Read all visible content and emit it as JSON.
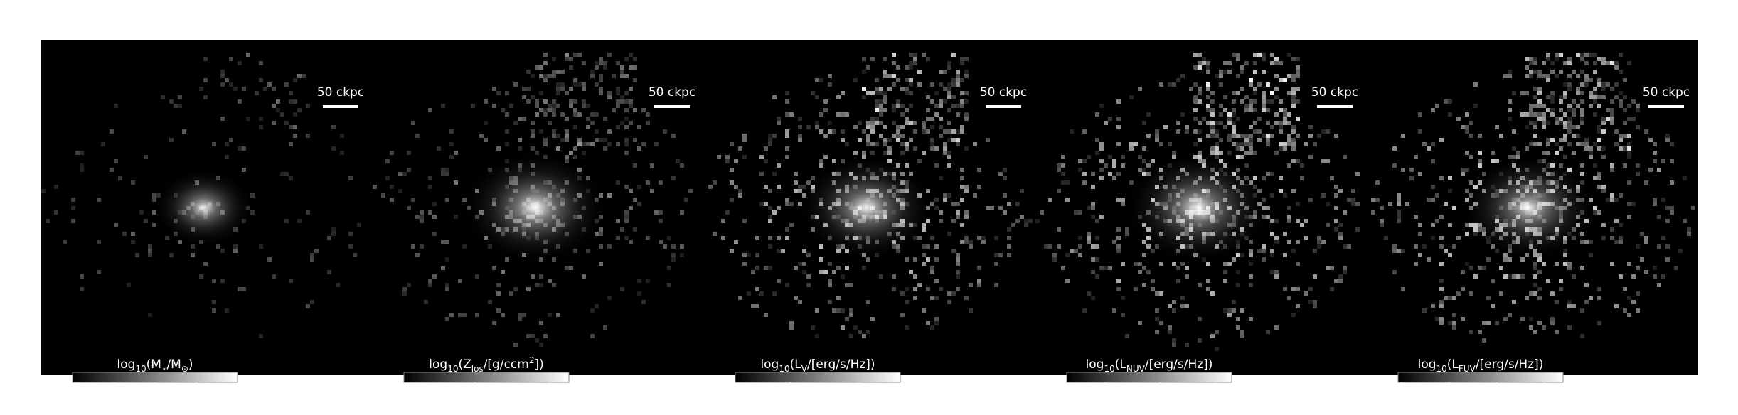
{
  "chart_data": [
    {
      "type": "image",
      "scale_label": "50 ckpc",
      "colorbar_label": [
        {
          "text": "log"
        },
        {
          "text": "10",
          "shift": "sub"
        },
        {
          "text": "(M"
        },
        {
          "text": "⋆",
          "shift": "sub"
        },
        {
          "text": "/M"
        },
        {
          "text": "⊙",
          "shift": "sub"
        },
        {
          "text": ")"
        }
      ],
      "clim": [
        6.0,
        10.0
      ],
      "cticks": [
        7,
        8,
        9,
        10
      ]
    },
    {
      "type": "image",
      "scale_label": "50 ckpc",
      "colorbar_label": [
        {
          "text": "log"
        },
        {
          "text": "10",
          "shift": "sub"
        },
        {
          "text": "(Z"
        },
        {
          "text": "los",
          "shift": "sub"
        },
        {
          "text": "/[g/ccm"
        },
        {
          "text": "2",
          "shift": "super"
        },
        {
          "text": "])"
        }
      ],
      "clim": [
        -9.8,
        1.3
      ],
      "cticks": [
        {
          "value": -5,
          "label": "−5"
        },
        0
      ]
    },
    {
      "type": "image",
      "scale_label": "50 ckpc",
      "colorbar_label": [
        {
          "text": "log"
        },
        {
          "text": "10",
          "shift": "sub"
        },
        {
          "text": "(L"
        },
        {
          "text": "V",
          "shift": "sub"
        },
        {
          "text": "/[erg/s/Hz])"
        }
      ],
      "clim": [
        25.2,
        27.6
      ],
      "cticks": [
        26,
        27
      ]
    },
    {
      "type": "image",
      "scale_label": "50 ckpc",
      "colorbar_label": [
        {
          "text": "log"
        },
        {
          "text": "10",
          "shift": "sub"
        },
        {
          "text": "(L"
        },
        {
          "text": "NUV",
          "shift": "sub"
        },
        {
          "text": "/[erg/s/Hz])"
        }
      ],
      "clim": [
        24.3,
        27.3
      ],
      "cticks": [
        25,
        26,
        27
      ]
    },
    {
      "type": "image",
      "scale_label": "50 ckpc",
      "colorbar_label": [
        {
          "text": "log"
        },
        {
          "text": "10",
          "shift": "sub"
        },
        {
          "text": "(L"
        },
        {
          "text": "FUV",
          "shift": "sub"
        },
        {
          "text": "/[erg/s/Hz])"
        }
      ],
      "clim": [
        23.93,
        27.4
      ],
      "cticks": [
        24,
        25,
        26,
        27
      ]
    }
  ]
}
